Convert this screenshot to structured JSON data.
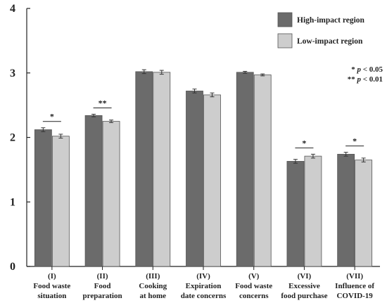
{
  "chart_data": {
    "type": "bar",
    "title": "",
    "xlabel": "",
    "ylabel": "",
    "ylim": [
      0,
      4
    ],
    "yticks": [
      "0",
      "1",
      "2",
      "3",
      "4"
    ],
    "grid": false,
    "legend_position": "top-right",
    "categories": [
      [
        "(I)",
        "Food waste",
        "situation"
      ],
      [
        "(II)",
        "Food",
        "preparation"
      ],
      [
        "(III)",
        "Cooking",
        "at home"
      ],
      [
        "(IV)",
        "Expiration",
        "date concerns"
      ],
      [
        "(V)",
        "Food waste",
        "concerns"
      ],
      [
        "(VI)",
        "Excessive",
        "food purchase"
      ],
      [
        "(VII)",
        "Influence of",
        "COVID-19"
      ]
    ],
    "series": [
      {
        "name": "High-impact region",
        "color": "#6b6b6b",
        "values": [
          2.12,
          2.34,
          3.02,
          2.72,
          3.01,
          1.63,
          1.74
        ],
        "errors": [
          0.03,
          0.02,
          0.03,
          0.03,
          0.015,
          0.03,
          0.03
        ]
      },
      {
        "name": "Low-impact region",
        "color": "#cdcdcd",
        "values": [
          2.02,
          2.25,
          3.01,
          2.66,
          2.97,
          1.71,
          1.65
        ],
        "errors": [
          0.03,
          0.02,
          0.03,
          0.03,
          0.015,
          0.03,
          0.03
        ]
      }
    ],
    "significance": [
      "*",
      "**",
      "",
      "",
      "",
      "*",
      "*"
    ],
    "notes": [
      {
        "stars": "* ",
        "p": "p",
        "rest": " < 0.05"
      },
      {
        "stars": "** ",
        "p": "p",
        "rest": " < 0.01"
      }
    ]
  }
}
